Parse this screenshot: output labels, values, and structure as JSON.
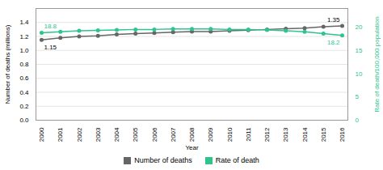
{
  "chart_data": {
    "type": "line",
    "xlabel": "Year",
    "ylabel": "Number of deaths (millions)",
    "y2label": "Rate of death/100,000 population",
    "x": [
      2000,
      2001,
      2002,
      2003,
      2004,
      2005,
      2006,
      2007,
      2008,
      2009,
      2010,
      2011,
      2012,
      2013,
      2014,
      2015,
      2016
    ],
    "series": [
      {
        "name": "Number of deaths",
        "color": "#666666",
        "marker": "circle",
        "values": [
          1.15,
          1.18,
          1.2,
          1.21,
          1.23,
          1.24,
          1.25,
          1.26,
          1.27,
          1.27,
          1.28,
          1.29,
          1.3,
          1.31,
          1.32,
          1.34,
          1.35
        ]
      },
      {
        "name": "Rate of death",
        "color": "#2dc48d",
        "marker": "circle",
        "axis": "y2",
        "values": [
          18.8,
          19.0,
          19.2,
          19.3,
          19.4,
          19.5,
          19.5,
          19.6,
          19.6,
          19.6,
          19.5,
          19.5,
          19.4,
          19.2,
          19.0,
          18.6,
          18.2
        ]
      }
    ],
    "xlim": [
      1999.7,
      2016.3
    ],
    "xticks": [
      2000,
      2001,
      2002,
      2003,
      2004,
      2005,
      2006,
      2007,
      2008,
      2009,
      2010,
      2011,
      2012,
      2013,
      2014,
      2015,
      2016
    ],
    "ylim": [
      0,
      1.6
    ],
    "yticks": [
      {
        "value": 0,
        "label": "0.0"
      },
      0.2,
      0.4,
      0.6,
      0.8,
      {
        "value": 1.0,
        "label": "1.0"
      },
      1.2,
      1.4
    ],
    "y2lim": [
      0,
      24
    ],
    "y2ticks": [
      0,
      5,
      10,
      15,
      20
    ],
    "annotations": [
      {
        "text": "1.15",
        "x": 2000,
        "y": 1.15
      },
      {
        "text": "1.35",
        "x": 2016,
        "y": 1.35
      },
      {
        "text": "18.8",
        "x": 2000,
        "y": 18.8,
        "axis": "y2"
      },
      {
        "text": "18.2",
        "x": 2016,
        "y": 18.2,
        "axis": "y2"
      }
    ],
    "grid": true,
    "legend": "bottom"
  }
}
